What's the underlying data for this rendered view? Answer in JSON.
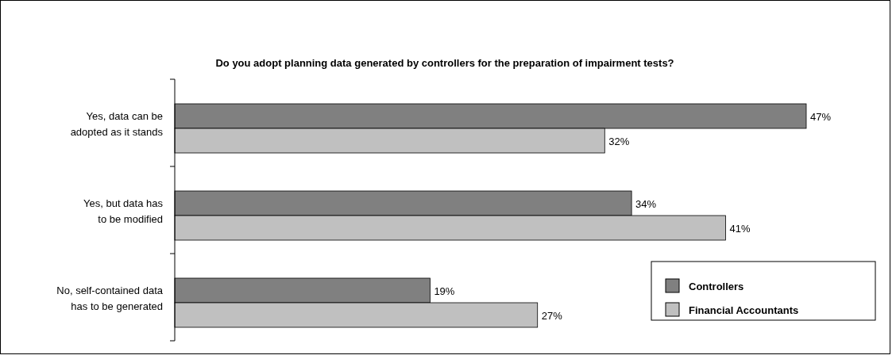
{
  "chart_data": {
    "type": "bar",
    "orientation": "horizontal",
    "title": "Do you adopt planning data generated by controllers for the preparation of impairment tests?",
    "categories": [
      "Yes, data can be adopted as it stands",
      "Yes, but data has to be modified",
      "No, self-contained data has to be generated"
    ],
    "series": [
      {
        "name": "Controllers",
        "color": "#808080",
        "values": [
          47,
          34,
          19
        ],
        "value_labels": [
          "47%",
          "34%",
          "19%"
        ]
      },
      {
        "name": "Financial Accountants",
        "color": "#c0c0c0",
        "values": [
          32,
          41,
          27
        ],
        "value_labels": [
          "32%",
          "41%",
          "27%"
        ]
      }
    ],
    "legend": "bottom right",
    "grid": false
  }
}
